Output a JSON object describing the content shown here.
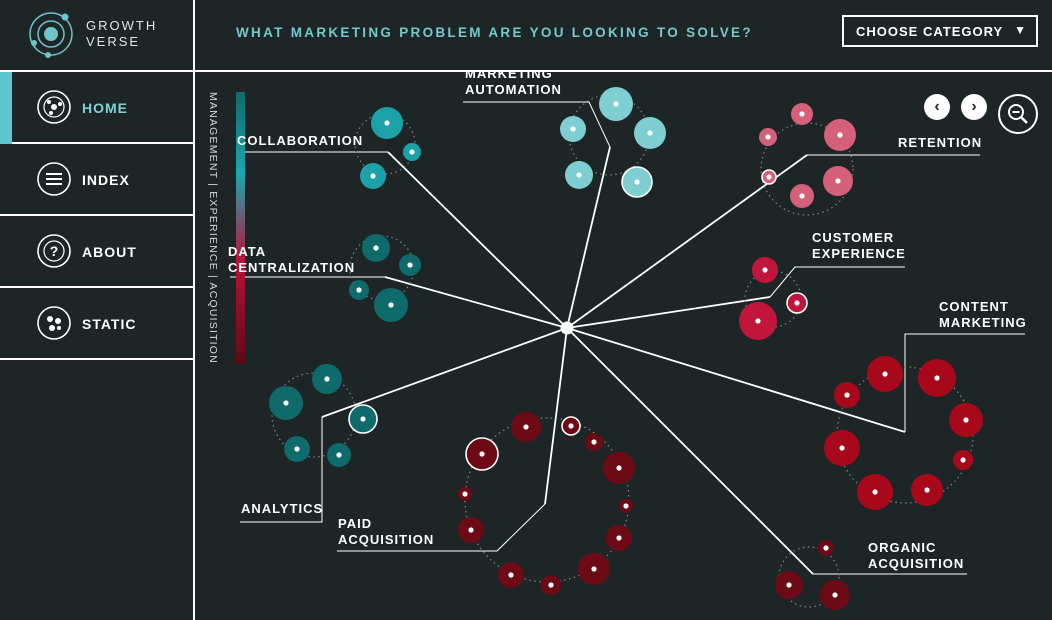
{
  "brand": {
    "line1": "GROWTH",
    "line2": "VERSE"
  },
  "nav": [
    {
      "label": "HOME",
      "icon": "home-orbit-icon",
      "active": true
    },
    {
      "label": "INDEX",
      "icon": "list-icon",
      "active": false
    },
    {
      "label": "ABOUT",
      "icon": "question-icon",
      "active": false
    },
    {
      "label": "STATIC",
      "icon": "dots-icon",
      "active": false
    }
  ],
  "header": {
    "question": "WHAT MARKETING PROBLEM ARE YOU LOOKING TO SOLVE?",
    "select_label": "CHOOSE CATEGORY"
  },
  "legend": {
    "text": "MANAGEMENT | EXPERIENCE | ACQUISITION"
  },
  "controls": {
    "prev": "‹",
    "next": "›"
  },
  "categories": {
    "collaboration": {
      "label": "COLLABORATION"
    },
    "data": {
      "line1": "DATA",
      "line2": "CENTRALIZATION"
    },
    "automation": {
      "line1": "MARKETING",
      "line2": "AUTOMATION"
    },
    "retention": {
      "label": "RETENTION"
    },
    "customer": {
      "line1": "CUSTOMER",
      "line2": "EXPERIENCE"
    },
    "content": {
      "line1": "CONTENT",
      "line2": "MARKETING"
    },
    "analytics": {
      "label": "ANALYTICS"
    },
    "paid": {
      "line1": "PAID",
      "line2": "ACQUISITION"
    },
    "organic": {
      "line1": "ORGANIC",
      "line2": "ACQUISITION"
    }
  },
  "colors": {
    "background": "#1e2526",
    "teal_dark": "#0f6a6b",
    "teal": "#1aa2a8",
    "teal_light": "#7fcfd2",
    "pink": "#d4607a",
    "crimson": "#c0163c",
    "red": "#a8091a",
    "maroon": "#6c0b15"
  }
}
